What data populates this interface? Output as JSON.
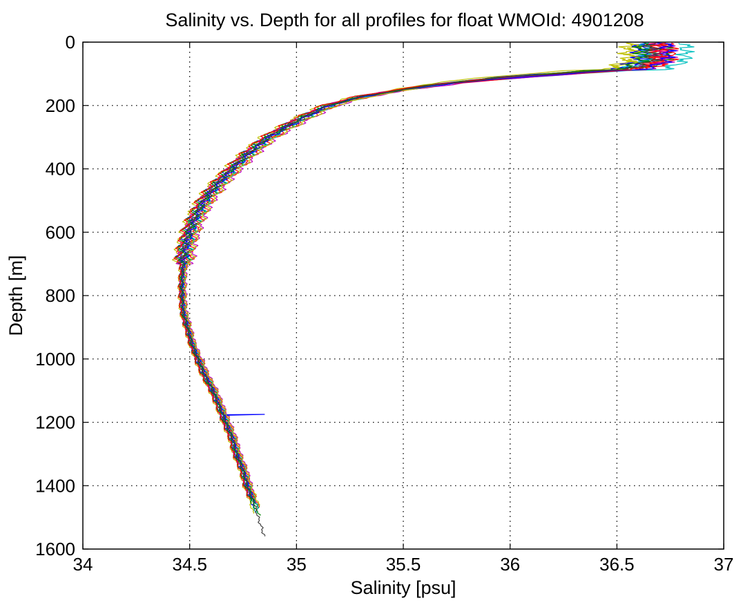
{
  "chart_data": {
    "type": "line",
    "title": "Salinity vs. Depth for all profiles for float WMOId: 4901208",
    "xlabel": "Salinity [psu]",
    "ylabel": "Depth [m]",
    "xlim": [
      34,
      37
    ],
    "ylim": [
      0,
      1600
    ],
    "y_reversed": true,
    "grid": "dotted",
    "x_ticks": [
      34,
      34.5,
      35,
      35.5,
      36,
      36.5,
      37
    ],
    "x_tick_labels": [
      "34",
      "34.5",
      "35",
      "35.5",
      "36",
      "36.5",
      "37"
    ],
    "y_ticks": [
      0,
      200,
      400,
      600,
      800,
      1000,
      1200,
      1400,
      1600
    ],
    "y_tick_labels": [
      "0",
      "200",
      "400",
      "600",
      "800",
      "1000",
      "1200",
      "1400",
      "1600"
    ],
    "colors": [
      "#0000ff",
      "#008000",
      "#ff0000",
      "#00bfbf",
      "#bf00bf",
      "#bfbf00",
      "#404040"
    ],
    "base_profile": {
      "depth": [
        5,
        40,
        70,
        90,
        110,
        130,
        150,
        170,
        200,
        250,
        300,
        350,
        400,
        450,
        500,
        550,
        600,
        650,
        700,
        750,
        800,
        850,
        900,
        950,
        1000,
        1050,
        1100,
        1150,
        1200,
        1250,
        1300,
        1350,
        1400,
        1450,
        1500,
        1560
      ],
      "salinity": [
        36.65,
        36.65,
        36.6,
        36.4,
        36.0,
        35.7,
        35.5,
        35.32,
        35.15,
        35.0,
        34.87,
        34.78,
        34.7,
        34.63,
        34.57,
        34.53,
        34.5,
        34.48,
        34.47,
        34.465,
        34.465,
        34.47,
        34.49,
        34.51,
        34.54,
        34.57,
        34.61,
        34.64,
        34.67,
        34.7,
        34.72,
        34.75,
        34.77,
        34.8,
        34.82,
        34.85
      ]
    },
    "series": [
      {
        "color": "#0000ff",
        "shift": -0.02,
        "surface": 36.62,
        "max_depth": 1480
      },
      {
        "color": "#008000",
        "shift": 0.015,
        "surface": 36.72,
        "max_depth": 1495
      },
      {
        "color": "#ff0000",
        "shift": 0.03,
        "surface": 36.68,
        "max_depth": 1470
      },
      {
        "color": "#00bfbf",
        "shift": -0.01,
        "surface": 36.82,
        "max_depth": 1485
      },
      {
        "color": "#bf00bf",
        "shift": 0.04,
        "surface": 36.74,
        "max_depth": 1420
      },
      {
        "color": "#bfbf00",
        "shift": -0.035,
        "surface": 36.55,
        "max_depth": 1490
      },
      {
        "color": "#0000ff",
        "shift": 0.0,
        "surface": 36.6,
        "max_depth": 1450,
        "spike_depth": 1175,
        "spike_salinity": 34.85
      },
      {
        "color": "#008000",
        "shift": -0.025,
        "surface": 36.66,
        "max_depth": 1460
      },
      {
        "color": "#ff0000",
        "shift": 0.01,
        "surface": 36.75,
        "max_depth": 1440
      },
      {
        "color": "#00bfbf",
        "shift": 0.02,
        "surface": 36.64,
        "max_depth": 1475
      },
      {
        "color": "#bf00bf",
        "shift": -0.015,
        "surface": 36.7,
        "max_depth": 1430
      },
      {
        "color": "#bfbf00",
        "shift": 0.035,
        "surface": 36.58,
        "max_depth": 1465
      },
      {
        "color": "#0000ff",
        "shift": 0.005,
        "surface": 36.73,
        "max_depth": 1455
      },
      {
        "color": "#008000",
        "shift": -0.005,
        "surface": 36.62,
        "max_depth": 1480
      },
      {
        "color": "#ff0000",
        "shift": -0.03,
        "surface": 36.69,
        "max_depth": 1445
      },
      {
        "color": "#404040",
        "shift": 0.0,
        "surface": 36.66,
        "max_depth": 1560
      }
    ]
  }
}
